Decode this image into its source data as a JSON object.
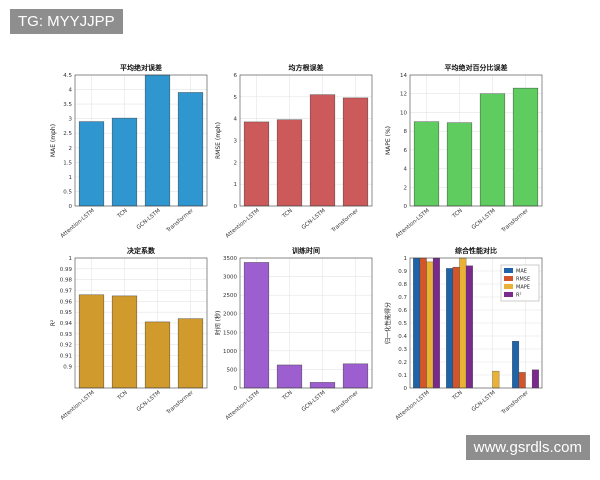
{
  "watermarks": {
    "top_left": "TG: MYYJJPP",
    "bottom_right": "www.gsrdls.com"
  },
  "chart_data": [
    {
      "type": "bar",
      "title": "平均绝对误差",
      "ylabel": "MAE (mph)",
      "categories": [
        "Attention-LSTM",
        "TCN",
        "GCN-LSTM",
        "Transformer"
      ],
      "values": [
        2.9,
        3.02,
        4.5,
        3.9
      ],
      "ylim": [
        0,
        4.5
      ],
      "yticks": [
        "0",
        "0.5",
        "1",
        "1.5",
        "2",
        "2.5",
        "3",
        "3.5",
        "4",
        "4.5"
      ],
      "color": "#2f96cf",
      "grid": true
    },
    {
      "type": "bar",
      "title": "均方根误差",
      "ylabel": "RMSE (mph)",
      "categories": [
        "Attention-LSTM",
        "TCN",
        "GCN-LSTM",
        "Transformer"
      ],
      "values": [
        3.85,
        3.95,
        5.1,
        4.95
      ],
      "ylim": [
        0,
        6
      ],
      "yticks": [
        "0",
        "1",
        "2",
        "3",
        "4",
        "5",
        "6"
      ],
      "color": "#cd5a5a",
      "grid": true
    },
    {
      "type": "bar",
      "title": "平均绝对百分比误差",
      "ylabel": "MAPE (%)",
      "categories": [
        "Attention-LSTM",
        "TCN",
        "GCN-LSTM",
        "Transformer"
      ],
      "values": [
        9.0,
        8.9,
        12.0,
        12.6
      ],
      "ylim": [
        0,
        14
      ],
      "yticks": [
        "0",
        "2",
        "4",
        "6",
        "8",
        "10",
        "12",
        "14"
      ],
      "color": "#5ecc5e",
      "grid": true
    },
    {
      "type": "bar",
      "title": "决定系数",
      "ylabel": "R²",
      "categories": [
        "Attention-LSTM",
        "TCN",
        "GCN-LSTM",
        "Transformer"
      ],
      "values": [
        0.966,
        0.965,
        0.941,
        0.944
      ],
      "ylim": [
        0.88,
        1.0
      ],
      "yticks": [
        "0.9",
        "0.91",
        "0.92",
        "0.93",
        "0.94",
        "0.95",
        "0.96",
        "0.97",
        "0.98",
        "0.99",
        "1"
      ],
      "ytick_start": 0.9,
      "ytick_step": 0.01,
      "color": "#d19a2c",
      "grid": true
    },
    {
      "type": "bar",
      "title": "训练时间",
      "ylabel": "时间 (秒)",
      "categories": [
        "Attention-LSTM",
        "TCN",
        "GCN-LSTM",
        "Transformer"
      ],
      "values": [
        3380,
        620,
        150,
        650
      ],
      "ylim": [
        0,
        3500
      ],
      "yticks": [
        "0",
        "500",
        "1000",
        "1500",
        "2000",
        "2500",
        "3000",
        "3500"
      ],
      "color": "#9d5fcf",
      "grid": true
    },
    {
      "type": "bar",
      "title": "综合性能对比",
      "ylabel": "归一化性能得分",
      "categories": [
        "Attention-LSTM",
        "TCN",
        "GCN-LSTM",
        "Transformer"
      ],
      "series": [
        {
          "name": "MAE",
          "color": "#1f64a8",
          "values": [
            1.0,
            0.92,
            0.0,
            0.36
          ]
        },
        {
          "name": "RMSE",
          "color": "#d2552b",
          "values": [
            1.0,
            0.93,
            0.0,
            0.12
          ]
        },
        {
          "name": "MAPE",
          "color": "#e9b236",
          "values": [
            0.97,
            1.0,
            0.13,
            0.0
          ]
        },
        {
          "name": "R²",
          "color": "#7a2a8c",
          "values": [
            1.0,
            0.94,
            0.0,
            0.14
          ]
        }
      ],
      "ylim": [
        0,
        1
      ],
      "yticks": [
        "0",
        "0.1",
        "0.2",
        "0.3",
        "0.4",
        "0.5",
        "0.6",
        "0.7",
        "0.8",
        "0.9",
        "1"
      ],
      "legend": "top-right",
      "grid": true
    }
  ]
}
